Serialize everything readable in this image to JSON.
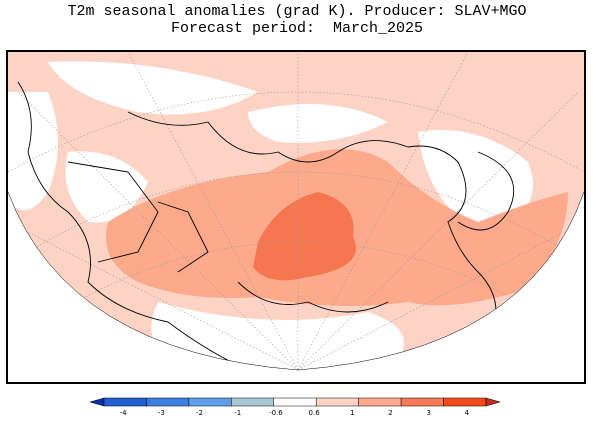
{
  "title": {
    "line1": "T2m seasonal anomalies (grad K). Producer: SLAV+MGO",
    "line2": "Forecast period:  March_2025"
  },
  "colorbar": {
    "ticks": [
      "-4",
      "-3",
      "-2",
      "-1",
      "-0.6",
      "0.6",
      "1",
      "2",
      "3",
      "4"
    ],
    "bins": [
      {
        "color": "#0a2fa8"
      },
      {
        "color": "#1f5fd0"
      },
      {
        "color": "#3d7fe0"
      },
      {
        "color": "#5f9ee8"
      },
      {
        "color": "#a8c8d8"
      },
      {
        "color": "#ffffff"
      },
      {
        "color": "#fdd3c5"
      },
      {
        "color": "#fca98c"
      },
      {
        "color": "#f67a55"
      },
      {
        "color": "#f24a1a"
      },
      {
        "color": "#c0301a"
      }
    ]
  },
  "map_colors": {
    "anom_0_6_1": "#fdd3c5",
    "anom_1_2": "#fca98c",
    "anom_2_3": "#f6764f",
    "coast": "#000000",
    "grid": "#9a9a9a"
  }
}
